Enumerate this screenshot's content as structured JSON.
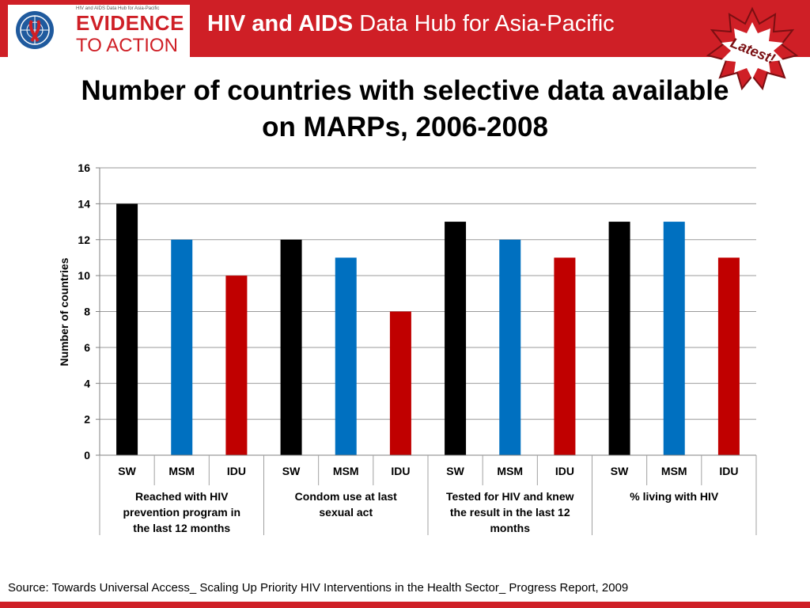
{
  "header": {
    "logo_small": "HIV and AIDS Data Hub for Asia-Pacific",
    "logo_line1": "EVIDENCE",
    "logo_line2": "TO ACTION",
    "title_bold": "HIV and AIDS",
    "title_rest": " Data Hub for Asia-Pacific",
    "badge": "Latest!"
  },
  "colors": {
    "brand_red": "#cf1f26",
    "SW": "#000000",
    "MSM": "#0070c0",
    "IDU": "#c00000"
  },
  "source": "Source: Towards Universal  Access_ Scaling Up Priority HIV Interventions in the Health Sector_ Progress Report, 2009",
  "chart_data": {
    "type": "bar",
    "title": "Number of countries with selective data available on MARPs, 2006-2008",
    "ylabel": "Number of countries",
    "xlabel": "",
    "ylim": [
      0,
      16
    ],
    "yticks": [
      0,
      2,
      4,
      6,
      8,
      10,
      12,
      14,
      16
    ],
    "grid": true,
    "groups": [
      {
        "label": "Reached with HIV prevention program in the last 12 months",
        "label_lines": [
          "Reached with HIV",
          "prevention program in",
          "the last 12 months"
        ],
        "categories": [
          "SW",
          "MSM",
          "IDU"
        ],
        "values": [
          14,
          12,
          10
        ]
      },
      {
        "label": "Condom use at last sexual act",
        "label_lines": [
          "Condom use at last",
          "sexual act"
        ],
        "categories": [
          "SW",
          "MSM",
          "IDU"
        ],
        "values": [
          12,
          11,
          8
        ]
      },
      {
        "label": "Tested for HIV and knew the result in the last 12 months",
        "label_lines": [
          "Tested for HIV and knew",
          "the result in the last 12",
          "months"
        ],
        "categories": [
          "SW",
          "MSM",
          "IDU"
        ],
        "values": [
          13,
          12,
          11
        ]
      },
      {
        "label": "% living with HIV",
        "label_lines": [
          "% living with HIV"
        ],
        "categories": [
          "SW",
          "MSM",
          "IDU"
        ],
        "values": [
          13,
          13,
          11
        ]
      }
    ]
  }
}
